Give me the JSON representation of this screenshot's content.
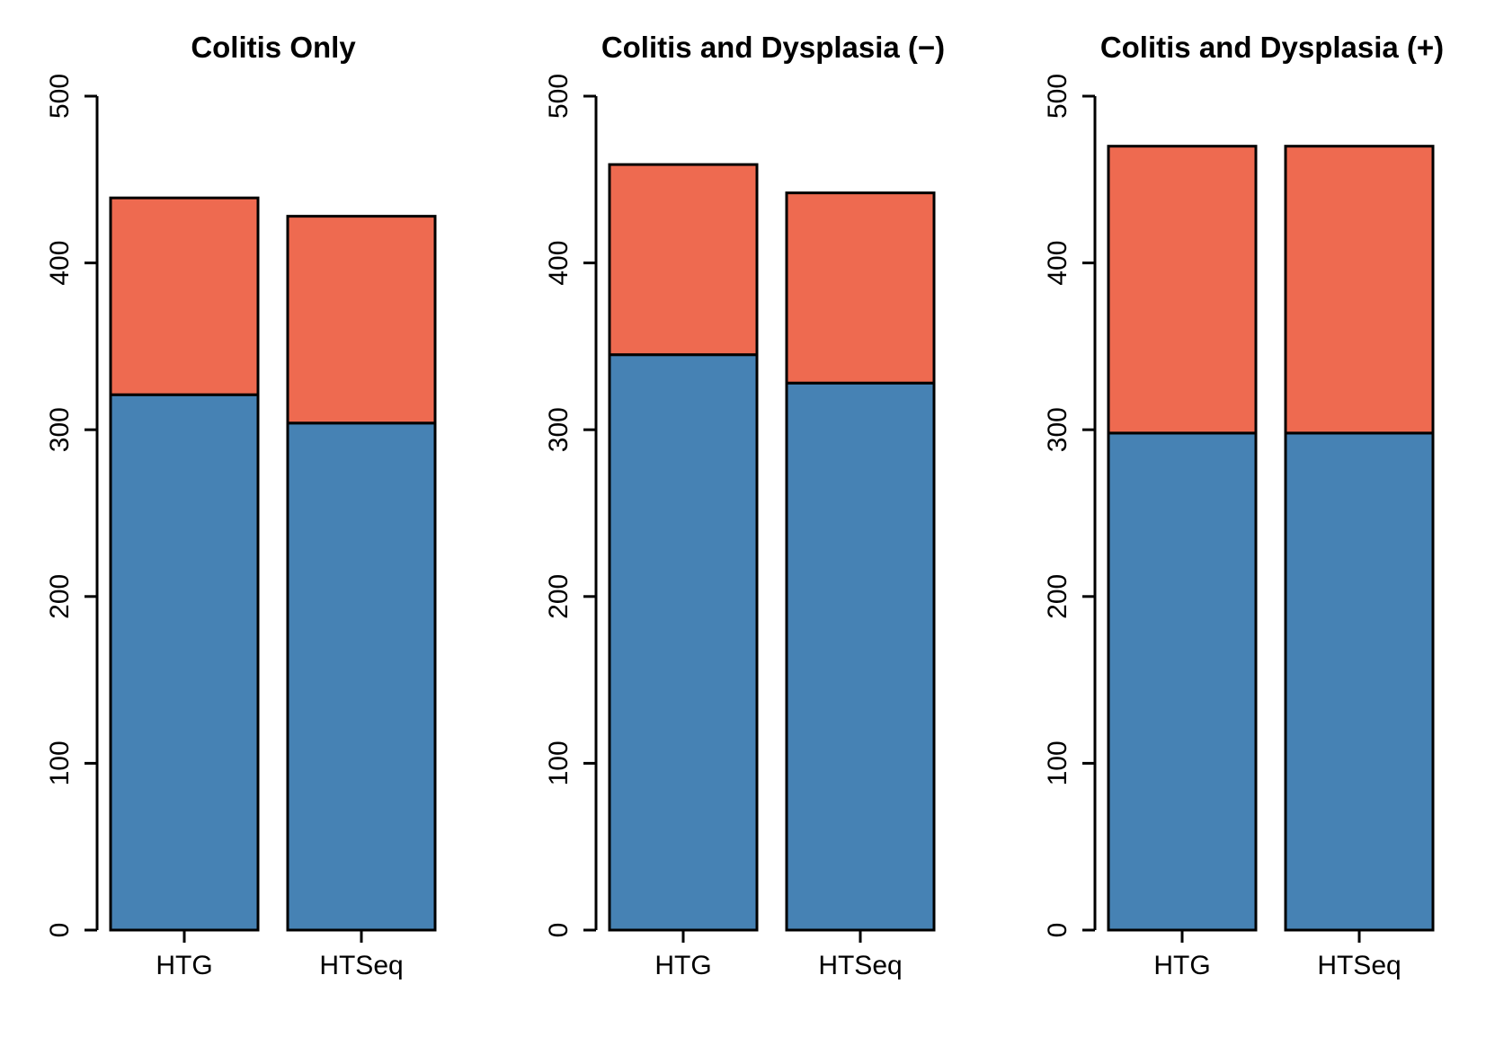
{
  "chart_data": [
    {
      "type": "bar",
      "stacked": true,
      "title": "Colitis Only",
      "categories": [
        "HTG",
        "HTSeq"
      ],
      "series": [
        {
          "values": [
            321,
            304
          ],
          "color": "#4682B4"
        },
        {
          "values": [
            118,
            124
          ],
          "color": "#EE6A50"
        }
      ],
      "ylim": [
        0,
        500
      ],
      "yticks": [
        "0",
        "100",
        "200",
        "300",
        "400",
        "500"
      ],
      "xlabel": "",
      "ylabel": ""
    },
    {
      "type": "bar",
      "stacked": true,
      "title": "Colitis and Dysplasia (−)",
      "categories": [
        "HTG",
        "HTSeq"
      ],
      "series": [
        {
          "values": [
            345,
            328
          ],
          "color": "#4682B4"
        },
        {
          "values": [
            114,
            114
          ],
          "color": "#EE6A50"
        }
      ],
      "ylim": [
        0,
        500
      ],
      "yticks": [
        "0",
        "100",
        "200",
        "300",
        "400",
        "500"
      ],
      "xlabel": "",
      "ylabel": ""
    },
    {
      "type": "bar",
      "stacked": true,
      "title": "Colitis and Dysplasia (+)",
      "categories": [
        "HTG",
        "HTSeq"
      ],
      "series": [
        {
          "values": [
            298,
            298
          ],
          "color": "#4682B4"
        },
        {
          "values": [
            172,
            172
          ],
          "color": "#EE6A50"
        }
      ],
      "ylim": [
        0,
        500
      ],
      "yticks": [
        "0",
        "100",
        "200",
        "300",
        "400",
        "500"
      ],
      "xlabel": "",
      "ylabel": ""
    }
  ]
}
